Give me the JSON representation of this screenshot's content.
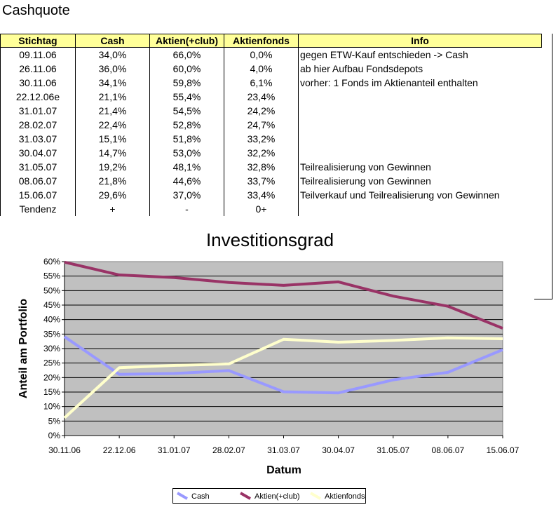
{
  "sheet": {
    "title": "Cashquote",
    "headers": [
      "Stichtag",
      "Cash",
      "Aktien(+club)",
      "Aktienfonds",
      "Info"
    ],
    "rows": [
      [
        "09.11.06",
        "34,0%",
        "66,0%",
        "0,0%",
        "gegen ETW-Kauf entschieden -> Cash"
      ],
      [
        "26.11.06",
        "36,0%",
        "60,0%",
        "4,0%",
        "ab hier Aufbau Fondsdepots"
      ],
      [
        "30.11.06",
        "34,1%",
        "59,8%",
        "6,1%",
        "vorher: 1 Fonds im Aktienanteil enthalten"
      ],
      [
        "22.12.06e",
        "21,1%",
        "55,4%",
        "23,4%",
        ""
      ],
      [
        "31.01.07",
        "21,4%",
        "54,5%",
        "24,2%",
        ""
      ],
      [
        "28.02.07",
        "22,4%",
        "52,8%",
        "24,7%",
        ""
      ],
      [
        "31.03.07",
        "15,1%",
        "51,8%",
        "33,2%",
        ""
      ],
      [
        "30.04.07",
        "14,7%",
        "53,0%",
        "32,2%",
        ""
      ],
      [
        "31.05.07",
        "19,2%",
        "48,1%",
        "32,8%",
        "Teilrealisierung von Gewinnen"
      ],
      [
        "08.06.07",
        "21,8%",
        "44,6%",
        "33,7%",
        "Teilrealisierung von Gewinnen"
      ],
      [
        "15.06.07",
        "29,6%",
        "37,0%",
        "33,4%",
        "Teilverkauf und Teilrealisierung von Gewinnen"
      ],
      [
        "Tendenz",
        "+",
        "-",
        "0+",
        ""
      ]
    ]
  },
  "chart_data": {
    "type": "line",
    "title": "Investitionsgrad",
    "xlabel": "Datum",
    "ylabel": "Anteil am Portfolio",
    "categories": [
      "30.11.06",
      "22.12.06",
      "31.01.07",
      "28.02.07",
      "31.03.07",
      "30.04.07",
      "31.05.07",
      "08.06.07",
      "15.06.07"
    ],
    "yticks": [
      "0%",
      "5%",
      "10%",
      "15%",
      "20%",
      "25%",
      "30%",
      "35%",
      "40%",
      "45%",
      "50%",
      "55%",
      "60%"
    ],
    "ylim": [
      0,
      60
    ],
    "grid": true,
    "legend": "bottom",
    "series": [
      {
        "name": "Cash",
        "color": "#9999ff",
        "values": [
          34.1,
          21.1,
          21.4,
          22.4,
          15.1,
          14.7,
          19.2,
          21.8,
          29.6
        ]
      },
      {
        "name": "Aktien(+club)",
        "color": "#993366",
        "values": [
          59.8,
          55.4,
          54.5,
          52.8,
          51.8,
          53.0,
          48.1,
          44.6,
          37.0
        ]
      },
      {
        "name": "Aktienfonds",
        "color": "#ffffcc",
        "values": [
          6.1,
          23.4,
          24.2,
          24.7,
          33.2,
          32.2,
          32.8,
          33.7,
          33.4
        ]
      }
    ],
    "plot_background": "#c0c0c0"
  }
}
